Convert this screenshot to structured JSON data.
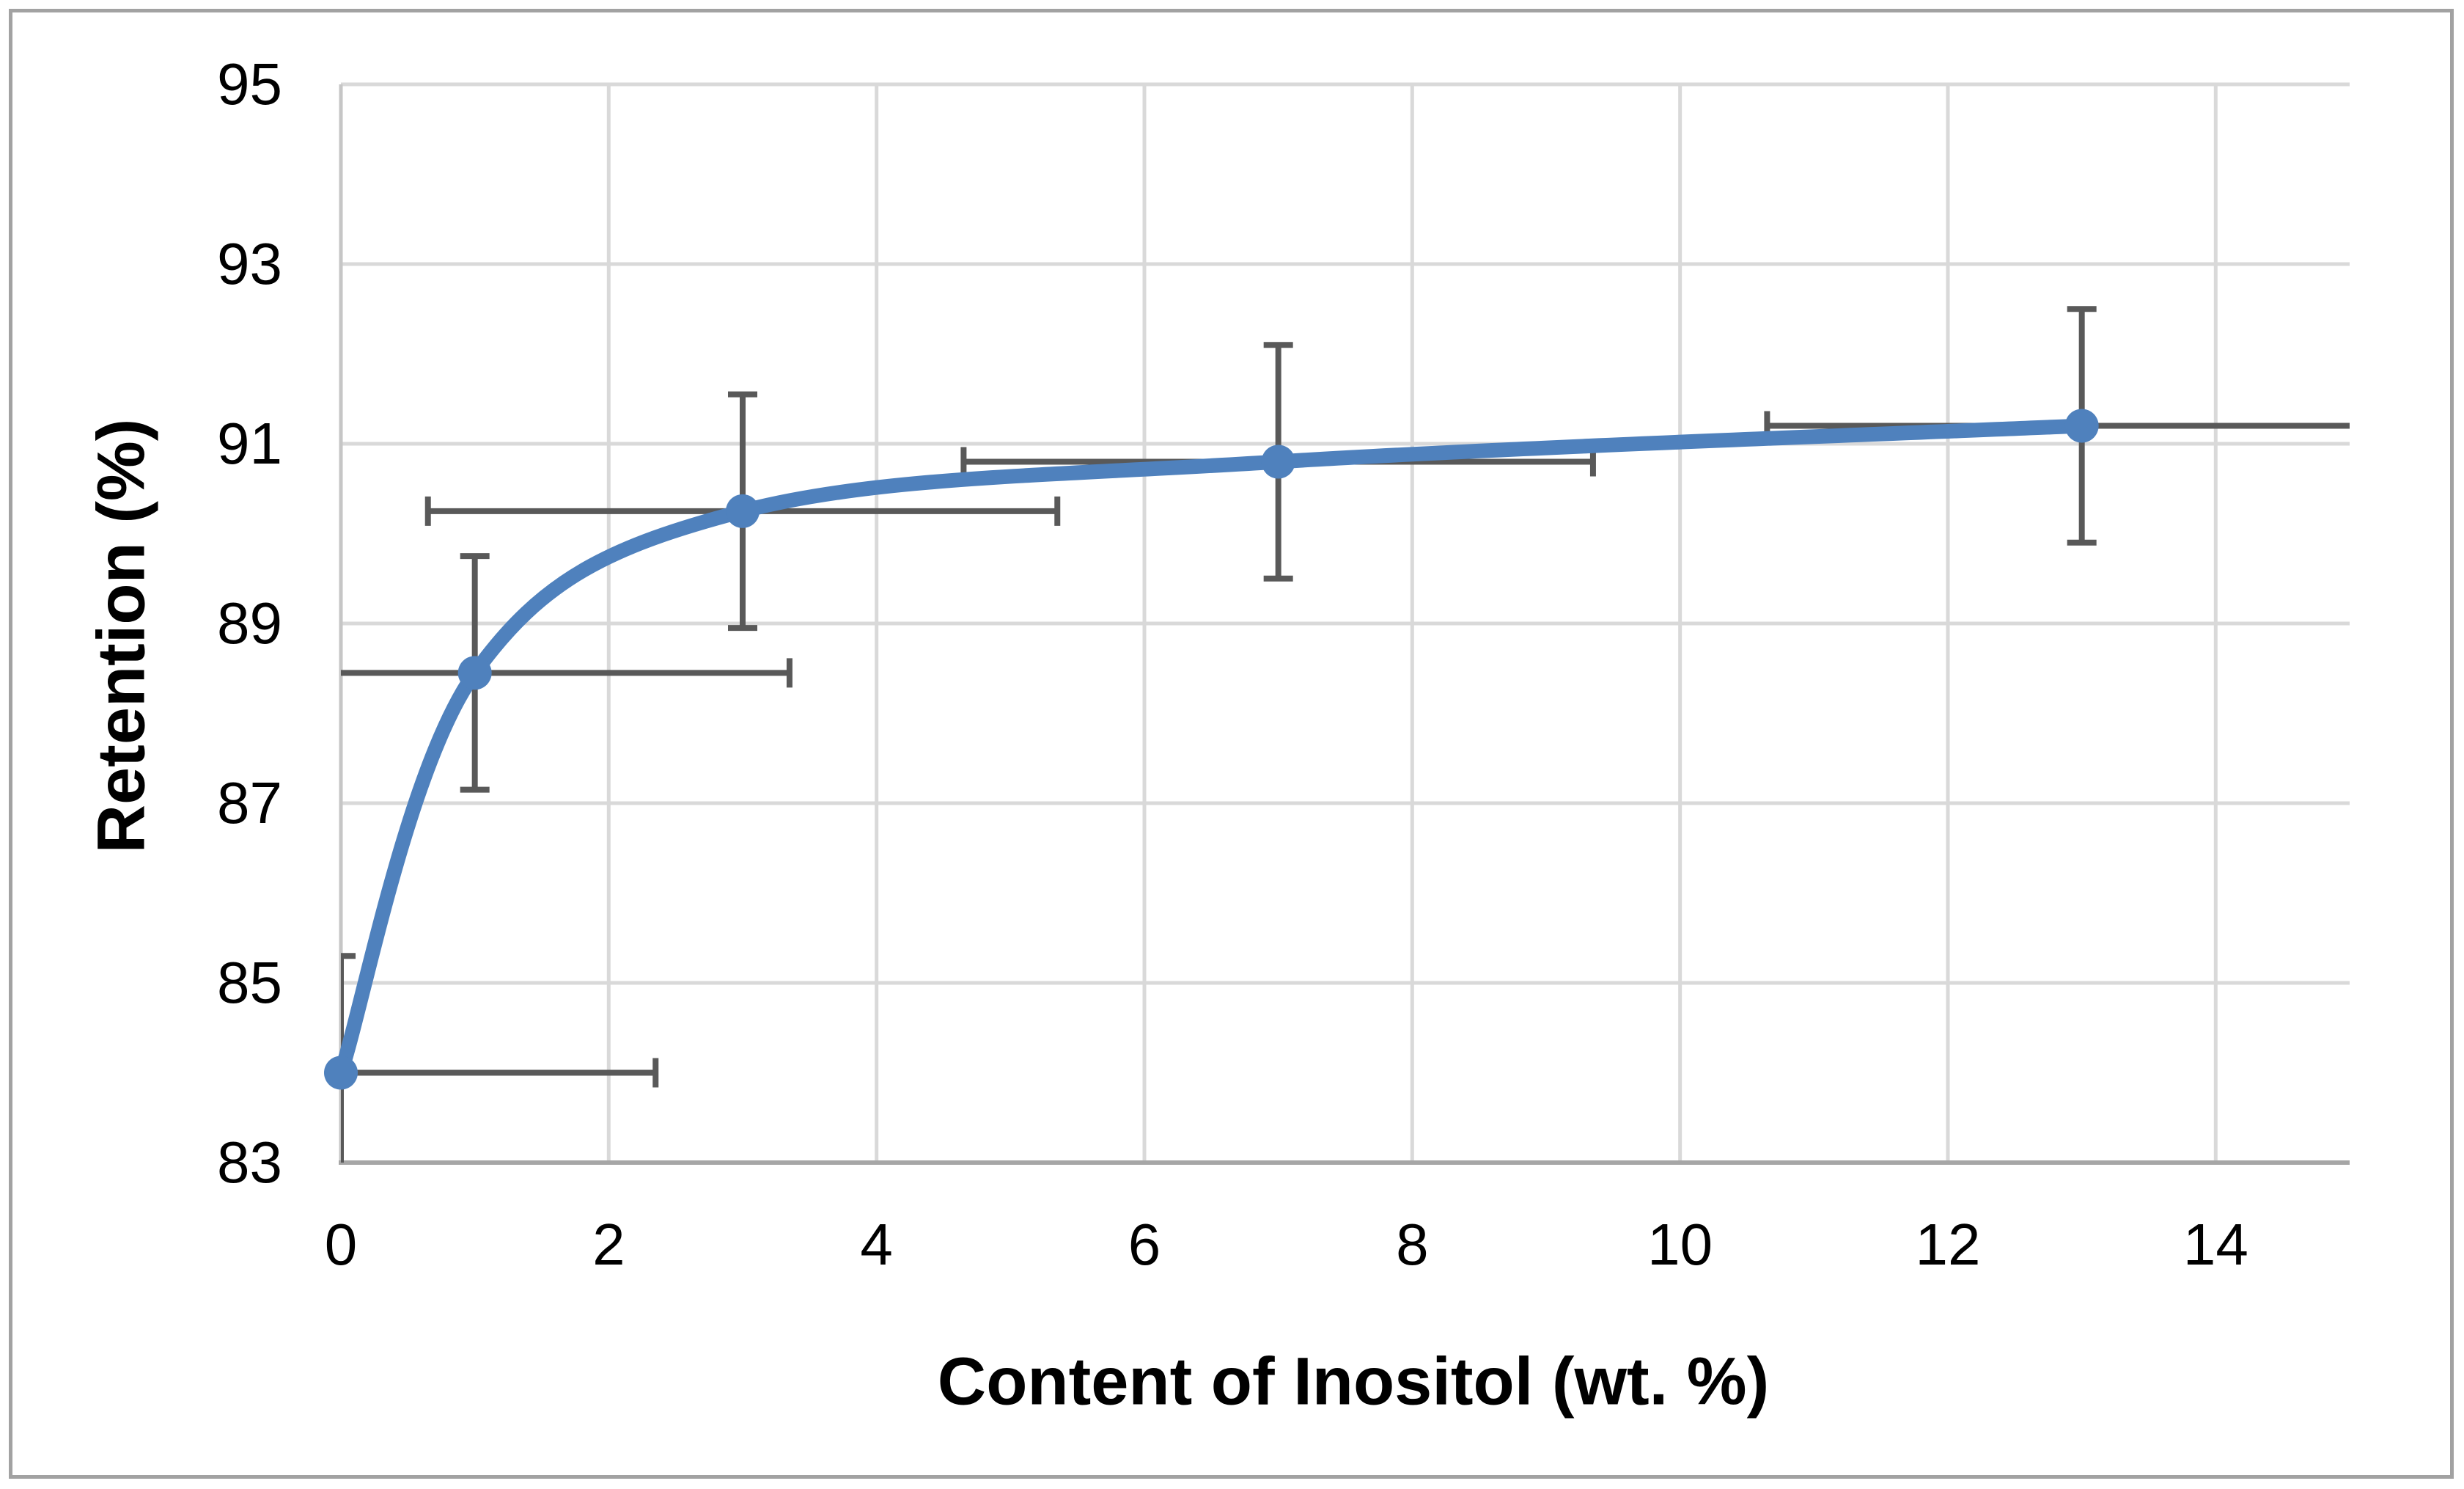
{
  "figure": {
    "background_color": "#ffffff",
    "border_color": "#a2a2a2"
  },
  "chart_data": {
    "type": "line",
    "title": "",
    "xlabel": "Content of Inositol (wt. %)",
    "ylabel": "Retention (%)",
    "xlim": [
      0,
      15
    ],
    "ylim": [
      83,
      95
    ],
    "x_ticks": [
      0,
      2,
      4,
      6,
      8,
      10,
      12,
      14
    ],
    "y_ticks": [
      95,
      93,
      91,
      89,
      87,
      85,
      83
    ],
    "grid": true,
    "legend": "none",
    "gridline_color": "#d9d9d9",
    "y_axis_line_color": "#c6c6c6",
    "x_axis_line_color": "#a6a6a6",
    "series": [
      {
        "name": "Retention",
        "smoothed": true,
        "marker": "circle",
        "line_color": "#4f81bd",
        "error_bar_color": "#595959",
        "x": [
          0,
          1,
          3,
          7,
          13
        ],
        "y": [
          84.0,
          88.45,
          90.25,
          90.8,
          91.2
        ],
        "x_error_plus": [
          2.35,
          2.35,
          2.35,
          2.35,
          2.35
        ],
        "x_error_minus": [
          2.35,
          2.35,
          2.35,
          2.35,
          2.35
        ],
        "y_error_plus": [
          1.3,
          1.3,
          1.3,
          1.3,
          1.3
        ],
        "y_error_minus": [
          1.3,
          1.3,
          1.3,
          1.3,
          1.3
        ]
      }
    ]
  }
}
